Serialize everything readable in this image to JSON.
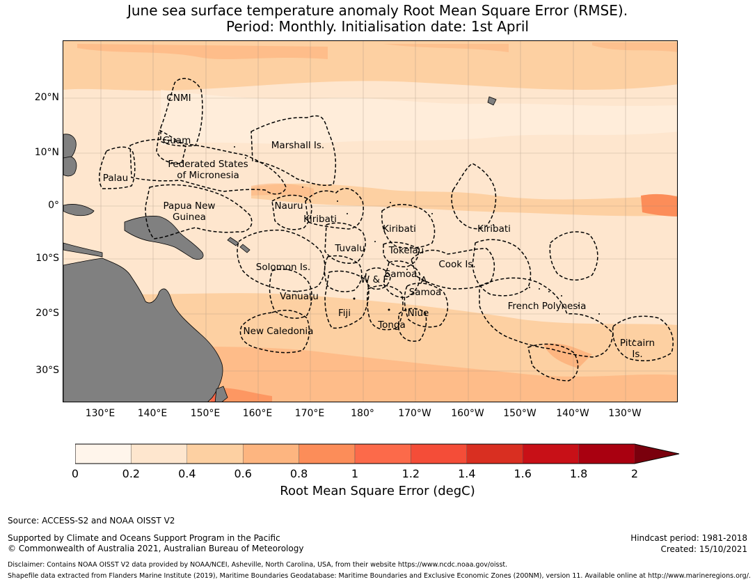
{
  "title_line1": "June sea surface temperature anomaly Root Mean Square Error (RMSE).",
  "title_line2": "Period: Monthly. Initialisation date: 1st April",
  "lat_ticks": [
    "20°N",
    "10°N",
    "0°",
    "10°S",
    "20°S",
    "30°S"
  ],
  "lon_ticks": [
    "130°E",
    "140°E",
    "150°E",
    "160°E",
    "170°E",
    "180°",
    "170°W",
    "160°W",
    "150°W",
    "140°W",
    "130°W"
  ],
  "regions": [
    {
      "name": "CNMI"
    },
    {
      "name": "Guam"
    },
    {
      "name": "Marshall Is."
    },
    {
      "name": "Federated States\nof Micronesia"
    },
    {
      "name": "Palau"
    },
    {
      "name": "Papua New\nGuinea"
    },
    {
      "name": "Nauru"
    },
    {
      "name": "Kiribati"
    },
    {
      "name": "Kiribati"
    },
    {
      "name": "Kiribati"
    },
    {
      "name": "Tuvalu"
    },
    {
      "name": "Tokelau"
    },
    {
      "name": "Solomon Is."
    },
    {
      "name": "Samoa"
    },
    {
      "name": "W & F"
    },
    {
      "name": "A."
    },
    {
      "name": "Samoa"
    },
    {
      "name": "Cook Is."
    },
    {
      "name": "Vanuatu"
    },
    {
      "name": "Fiji"
    },
    {
      "name": "Niue"
    },
    {
      "name": "Tonga"
    },
    {
      "name": "French Polynesia"
    },
    {
      "name": "New Caledonia"
    },
    {
      "name": "Pitcairn\nIs."
    }
  ],
  "colorbar": {
    "ticks": [
      "0",
      "0.2",
      "0.4",
      "0.6",
      "0.8",
      "1",
      "1.2",
      "1.4",
      "1.6",
      "1.8",
      "2"
    ],
    "colors": [
      "#fff5eb",
      "#fee6ce",
      "#fdd0a2",
      "#fdb580",
      "#fc8d59",
      "#fc6a4a",
      "#f44d38",
      "#d92f21",
      "#c81017",
      "#a90010",
      "#7a000d"
    ],
    "label": "Root Mean Square Error (degC)"
  },
  "legend_colors": {
    "land": "#808080",
    "ocean_base": "#fee6ce",
    "ocean_light": "#fff0e0",
    "ocean_mid": "#fdd0a2",
    "ocean_high": "#fdb580",
    "ocean_max": "#fc8d59"
  },
  "footer": {
    "source": "Source: ACCESS-S2 and NOAA OISST V2",
    "supported": "Supported by Climate and Oceans Support Program in the Pacific",
    "copyright": "© Commonwealth of Australia 2021, Australian Bureau of Meteorology",
    "hindcast": "Hindcast period: 1981-2018",
    "created": "Created: 15/10/2021",
    "disclaimer": "Disclaimer: Contains NOAA OISST V2 data provided by NOAA/NCEI, Asheville, North Carolina, USA, from their website https://www.ncdc.noaa.gov/oisst.",
    "shapefile": "Shapefile data extracted from Flanders Marine Institute (2019), Maritime Boundaries Geodatabase: Maritime Boundaries and Exclusive Economic Zones (200NM), version 11. Available online at http://www.marineregions.org/."
  }
}
